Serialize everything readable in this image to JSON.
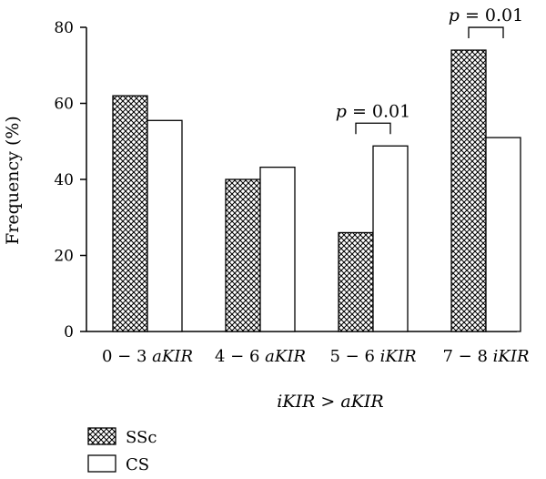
{
  "chart_data": {
    "type": "bar",
    "title": "",
    "xlabel": "iKIR > aKIR",
    "ylabel": "Frequency (%)",
    "ylim": [
      0,
      80
    ],
    "yticks": [
      0,
      20,
      40,
      60,
      80
    ],
    "categories": [
      {
        "num": "0 − 3",
        "word": "aKIR"
      },
      {
        "num": "4 − 6",
        "word": "aKIR"
      },
      {
        "num": "5 − 6",
        "word": "iKIR"
      },
      {
        "num": "7 − 8",
        "word": "iKIR"
      }
    ],
    "series": [
      {
        "name": "SSc",
        "values": [
          62,
          40,
          26,
          74
        ],
        "pattern": "crosshatch"
      },
      {
        "name": "CS",
        "values": [
          55.5,
          43.2,
          48.8,
          51
        ],
        "pattern": "open"
      }
    ],
    "annotations": [
      {
        "category_index": 2,
        "p_label": "p",
        "p_text": " = 0.01"
      },
      {
        "category_index": 3,
        "p_label": "p",
        "p_text": " = 0.01"
      }
    ],
    "legend_placement": "bottom-left",
    "grid": false
  }
}
